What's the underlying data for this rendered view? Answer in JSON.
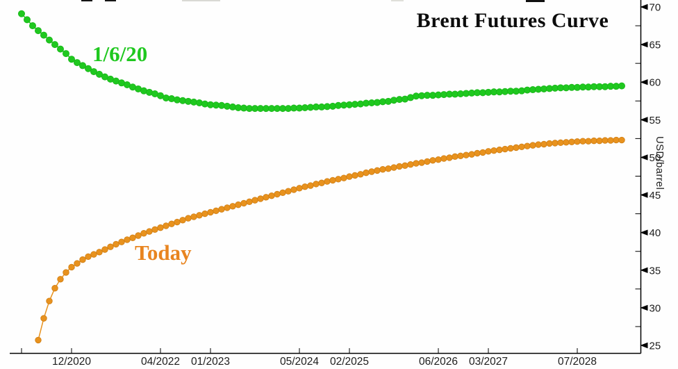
{
  "chart": {
    "title": "Brent Futures Curve",
    "green_series_label": "1/6/20",
    "today_series_label": "Today",
    "y_axis_label": "USD/barrel",
    "colors": {
      "green": "#1fc81f",
      "orange": "#e8921e",
      "orange_edge": "#cf7d12",
      "title_text": "#0c0c0c",
      "axis": "#000000",
      "tick_text": "#1d1d1d"
    }
  },
  "chart_data": {
    "type": "line",
    "title": "Brent Futures Curve",
    "xlabel": "",
    "ylabel": "USD/barrel",
    "ylim": [
      25,
      70
    ],
    "y_major_ticks": [
      25,
      30,
      35,
      40,
      45,
      50,
      55,
      60,
      65,
      70
    ],
    "y_minor_ticks": [
      27.5,
      32.5,
      37.5,
      42.5,
      47.5,
      52.5,
      57.5,
      62.5,
      67.5
    ],
    "grid": false,
    "legend_position": "inline-annotations",
    "x_unit": "monthly Brent futures contract",
    "x_ticks": [
      {
        "label": "12/2020",
        "month_offset": 9
      },
      {
        "label": "04/2022",
        "month_offset": 25
      },
      {
        "label": "01/2023",
        "month_offset": 34
      },
      {
        "label": "05/2024",
        "month_offset": 50
      },
      {
        "label": "02/2025",
        "month_offset": 59
      },
      {
        "label": "06/2026",
        "month_offset": 75
      },
      {
        "label": "03/2027",
        "month_offset": 84
      },
      {
        "label": "07/2028",
        "month_offset": 100
      }
    ],
    "x_unlabeled_tick_offsets": [
      0
    ],
    "series": [
      {
        "name": "1/6/20",
        "color": "#1fc81f",
        "edge_color": "#17b517",
        "dot_radius": 4.6,
        "first_contract": "03/2020",
        "month_offset": 0,
        "values": [
          69.1,
          68.3,
          67.5,
          66.85,
          66.25,
          65.6,
          65.0,
          64.4,
          63.8,
          63.05,
          62.6,
          62.2,
          61.8,
          61.4,
          61.05,
          60.7,
          60.4,
          60.15,
          59.9,
          59.65,
          59.35,
          59.1,
          58.85,
          58.65,
          58.45,
          58.2,
          57.9,
          57.8,
          57.65,
          57.55,
          57.45,
          57.35,
          57.25,
          57.1,
          57.0,
          56.95,
          56.9,
          56.8,
          56.7,
          56.6,
          56.55,
          56.5,
          56.5,
          56.5,
          56.5,
          56.5,
          56.5,
          56.5,
          56.5,
          56.55,
          56.55,
          56.6,
          56.65,
          56.7,
          56.7,
          56.75,
          56.8,
          56.9,
          56.95,
          57.0,
          57.05,
          57.1,
          57.2,
          57.25,
          57.3,
          57.4,
          57.45,
          57.6,
          57.7,
          57.75,
          57.95,
          58.15,
          58.2,
          58.25,
          58.25,
          58.3,
          58.35,
          58.4,
          58.4,
          58.45,
          58.5,
          58.55,
          58.6,
          58.6,
          58.65,
          58.7,
          58.7,
          58.75,
          58.8,
          58.8,
          58.85,
          58.95,
          59.0,
          59.05,
          59.1,
          59.15,
          59.2,
          59.25,
          59.25,
          59.3,
          59.3,
          59.35,
          59.35,
          59.4,
          59.4,
          59.4,
          59.45,
          59.45,
          59.5
        ]
      },
      {
        "name": "Today",
        "color": "#e8921e",
        "edge_color": "#cf7d12",
        "dot_radius": 4.3,
        "first_contract": "06/2020",
        "month_offset": 3,
        "values": [
          25.7,
          28.6,
          30.9,
          32.6,
          33.8,
          34.7,
          35.4,
          35.9,
          36.4,
          36.8,
          37.1,
          37.4,
          37.75,
          38.1,
          38.45,
          38.75,
          39.05,
          39.3,
          39.6,
          39.9,
          40.15,
          40.4,
          40.65,
          40.9,
          41.15,
          41.4,
          41.65,
          41.9,
          42.1,
          42.3,
          42.5,
          42.7,
          42.9,
          43.1,
          43.3,
          43.5,
          43.7,
          43.9,
          44.1,
          44.3,
          44.5,
          44.7,
          44.9,
          45.1,
          45.3,
          45.5,
          45.7,
          45.9,
          46.1,
          46.25,
          46.45,
          46.6,
          46.8,
          46.95,
          47.1,
          47.25,
          47.45,
          47.6,
          47.75,
          47.95,
          48.1,
          48.25,
          48.4,
          48.5,
          48.65,
          48.8,
          48.9,
          49.05,
          49.2,
          49.3,
          49.45,
          49.6,
          49.7,
          49.85,
          49.95,
          50.1,
          50.2,
          50.3,
          50.4,
          50.55,
          50.65,
          50.8,
          50.9,
          51.0,
          51.1,
          51.2,
          51.3,
          51.4,
          51.5,
          51.6,
          51.7,
          51.75,
          51.85,
          51.9,
          51.95,
          52.0,
          52.05,
          52.1,
          52.15,
          52.15,
          52.2,
          52.2,
          52.25,
          52.25,
          52.3,
          52.3
        ]
      }
    ]
  }
}
